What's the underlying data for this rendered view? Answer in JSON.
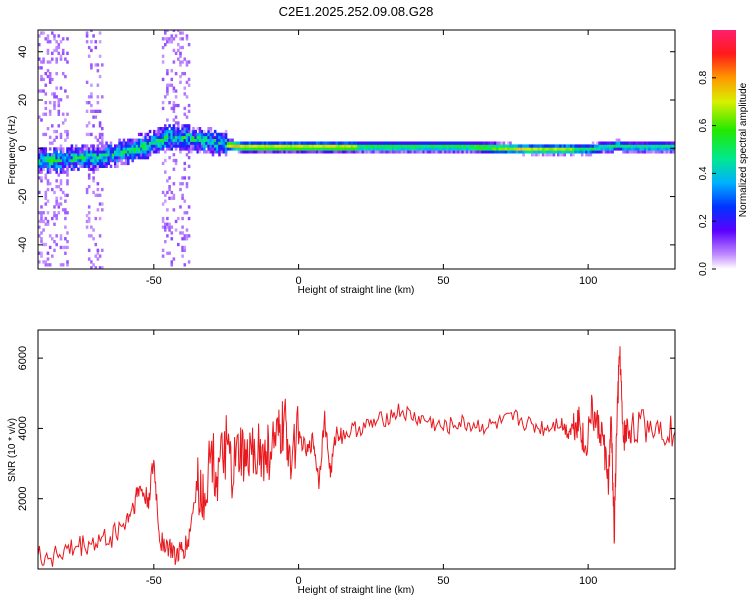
{
  "title": "C2E1.2025.252.09.08.G28",
  "chart_data": [
    {
      "type": "heatmap",
      "title": "C2E1.2025.252.09.08.G28",
      "xlabel": "Height of straight line (km)",
      "ylabel": "Frequency (Hz)",
      "xlim": [
        -90,
        130
      ],
      "ylim": [
        -50,
        49
      ],
      "xticks": [
        -50,
        0,
        50,
        100
      ],
      "yticks": [
        -40,
        -20,
        0,
        20,
        40
      ],
      "ridge": {
        "x": [
          -90,
          -80,
          -70,
          -60,
          -55,
          -50,
          -45,
          -40,
          -35,
          -30,
          -25,
          -20,
          -10,
          0,
          10,
          20,
          40,
          60,
          80,
          95,
          100,
          105,
          108,
          110,
          112,
          120,
          130
        ],
        "y": [
          -6,
          -5,
          -4,
          -2,
          0,
          2,
          4,
          4,
          3,
          2,
          1,
          0,
          0,
          0,
          0,
          0,
          0,
          0,
          -1,
          -1,
          -1,
          0,
          0,
          1,
          0,
          0,
          0
        ]
      },
      "colorbar": {
        "label": "Normalized spectral amplitude",
        "range": [
          0,
          1
        ],
        "ticks": [
          "0.0",
          "0.2",
          "0.4",
          "0.6",
          "0.8"
        ]
      }
    },
    {
      "type": "line",
      "xlabel": "Height of straight line (km)",
      "ylabel": "SNR (10 * v/v)",
      "xlim": [
        -90,
        130
      ],
      "ylim": [
        0,
        6800
      ],
      "xticks": [
        -50,
        0,
        50,
        100
      ],
      "yticks": [
        2000,
        4000,
        6000
      ],
      "series": [
        {
          "name": "SNR",
          "color": "#e8191e",
          "x": [
            -90,
            -85,
            -80,
            -75,
            -70,
            -65,
            -60,
            -57,
            -55,
            -52,
            -50,
            -48,
            -45,
            -42,
            -40,
            -38,
            -35,
            -33,
            -30,
            -28,
            -25,
            -23,
            -20,
            -18,
            -15,
            -12,
            -10,
            -7,
            -5,
            -3,
            0,
            3,
            5,
            7,
            9,
            11,
            13,
            15,
            20,
            25,
            30,
            35,
            40,
            45,
            50,
            55,
            60,
            65,
            70,
            75,
            80,
            85,
            90,
            93,
            95,
            97,
            99,
            101,
            103,
            105,
            107,
            108,
            109,
            110,
            111,
            112,
            113,
            115,
            120,
            125,
            130
          ],
          "y": [
            300,
            400,
            500,
            650,
            750,
            900,
            1300,
            1800,
            2300,
            1900,
            3000,
            900,
            600,
            400,
            500,
            800,
            2500,
            2000,
            3300,
            2500,
            3500,
            2700,
            3300,
            2900,
            3600,
            3100,
            3400,
            3600,
            4100,
            3400,
            3800,
            3300,
            3700,
            2500,
            4300,
            2700,
            3900,
            3800,
            4000,
            4100,
            4300,
            4500,
            4300,
            4200,
            4000,
            4150,
            4100,
            4050,
            4150,
            4300,
            4100,
            4000,
            4200,
            3900,
            4100,
            4300,
            3300,
            4500,
            4100,
            3800,
            2500,
            4200,
            900,
            4400,
            6200,
            3700,
            3900,
            4000,
            4100,
            4050,
            3900
          ]
        }
      ]
    }
  ]
}
